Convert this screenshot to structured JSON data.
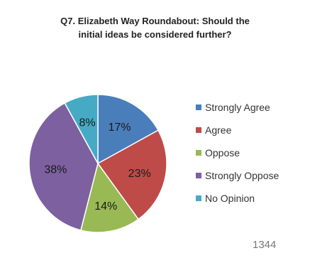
{
  "chart_data": {
    "type": "pie",
    "title_lines": [
      "Q7. Elizabeth Way Roundabout: Should the",
      "initial ideas be considered further?"
    ],
    "categories": [
      "Strongly Agree",
      "Agree",
      "Oppose",
      "Strongly Oppose",
      "No Opinion"
    ],
    "values": [
      17,
      23,
      14,
      38,
      8
    ],
    "value_labels": [
      "17%",
      "23%",
      "14%",
      "38%",
      "8%"
    ],
    "colors": [
      "#4a7ebb",
      "#be4b48",
      "#98b954",
      "#7d60a0",
      "#46aac5"
    ],
    "legend_position": "right"
  },
  "footer_note": "1344"
}
